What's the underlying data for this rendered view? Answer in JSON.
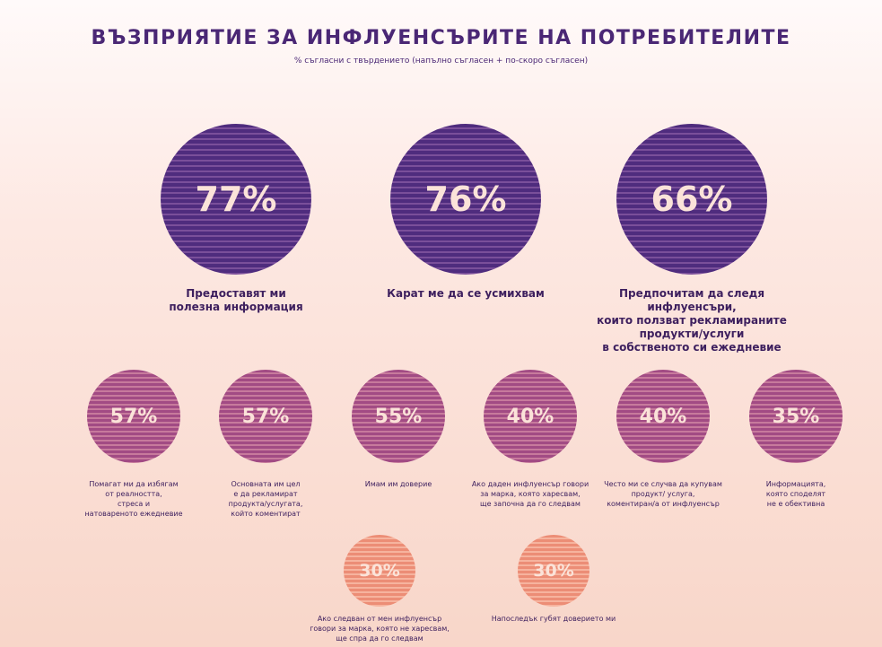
{
  "chart_data": {
    "type": "bubble-infographic",
    "title": "ВЪЗПРИЯТИЕ ЗА ИНФЛУЕНСЪРИТЕ НА ПОТРЕБИТЕЛИТЕ",
    "subtitle": "% съгласни с твърдението (напълно съгласен + по-скоро съгласен)",
    "unit": "%",
    "items": [
      {
        "value": 77,
        "display": "77%",
        "label": "Предоставят ми\nполезна информация"
      },
      {
        "value": 76,
        "display": "76%",
        "label": "Карат ме да се усмихвам"
      },
      {
        "value": 66,
        "display": "66%",
        "label": "Предпочитам да следя инфлуенсъри,\nкоито ползват рекламираните\nпродукти/услуги\nв собственото си ежедневие"
      },
      {
        "value": 57,
        "display": "57%",
        "label": "Помагат ми да избягам\nот реалността,\nстреса и\nнатовареното ежедневие"
      },
      {
        "value": 57,
        "display": "57%",
        "label": "Основната им цел\nе да рекламират\nпродукта/услугата,\nкойто коментират"
      },
      {
        "value": 55,
        "display": "55%",
        "label": "Имам им доверие"
      },
      {
        "value": 40,
        "display": "40%",
        "label": "Ако даден инфлуенсър говори\nза марка, която харесвам,\nще започна да го следвам"
      },
      {
        "value": 40,
        "display": "40%",
        "label": "Често ми се случва да купувам\nпродукт/ услуга,\nкоментиран/а от инфлуенсър"
      },
      {
        "value": 35,
        "display": "35%",
        "label": "Информацията,\nкоято споделят\nне е обективна"
      },
      {
        "value": 30,
        "display": "30%",
        "label": "Ако следван от мен инфлуенсър\nговори за марка, която не харесвам,\nще спра да го следвам"
      },
      {
        "value": 30,
        "display": "30%",
        "label": "Напоследък губят доверието ми"
      }
    ]
  },
  "colors": {
    "title": "#4a2775",
    "tier_high": "#4f2c7e",
    "tier_mid": "#a24b84",
    "tier_low": "#ec8d76"
  }
}
